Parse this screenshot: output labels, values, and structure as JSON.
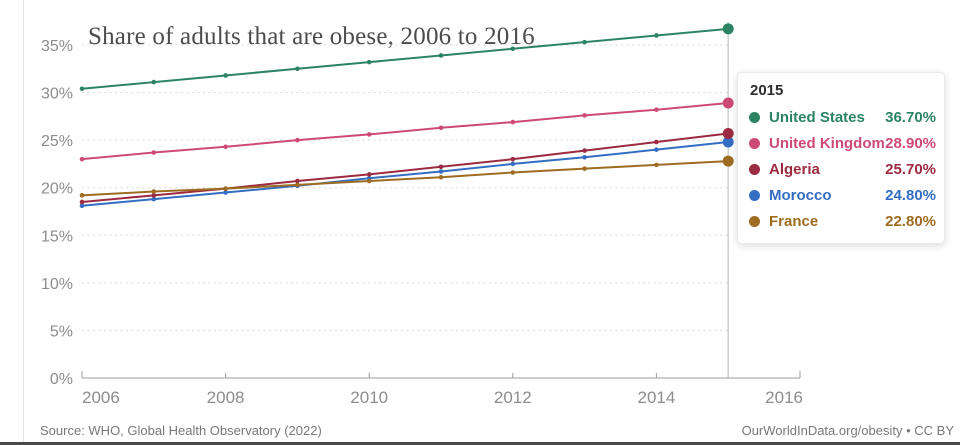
{
  "chart_data": {
    "type": "line",
    "title": "Share of adults that are obese, 2006 to 2016",
    "xlabel": "",
    "ylabel": "",
    "xlim": [
      2006,
      2016
    ],
    "ylim": [
      0,
      38
    ],
    "grid": "horizontal dotted",
    "legend_position": "hover tooltip overlay, right side",
    "hover_year": 2015,
    "x": [
      2006,
      2007,
      2008,
      2009,
      2010,
      2011,
      2012,
      2013,
      2014,
      2015
    ],
    "x_axis_ticks": [
      "2006",
      "2008",
      "2010",
      "2012",
      "2014",
      "2016"
    ],
    "y_axis_ticks": [
      "0%",
      "5%",
      "10%",
      "15%",
      "20%",
      "25%",
      "30%",
      "35%"
    ],
    "series": [
      {
        "name": "United States",
        "color": "#2C8465",
        "values": [
          30.4,
          31.1,
          31.8,
          32.5,
          33.2,
          33.9,
          34.6,
          35.3,
          36.0,
          36.7
        ]
      },
      {
        "name": "United Kingdom",
        "color": "#CE4A76",
        "values": [
          23.0,
          23.7,
          24.3,
          25.0,
          25.6,
          26.3,
          26.9,
          27.6,
          28.2,
          28.9
        ]
      },
      {
        "name": "Morocco",
        "color": "#346EC2",
        "values": [
          18.1,
          18.8,
          19.5,
          20.2,
          21.0,
          21.7,
          22.5,
          23.2,
          24.0,
          24.8
        ]
      },
      {
        "name": "Algeria",
        "color": "#9C2A40",
        "values": [
          18.5,
          19.2,
          19.9,
          20.7,
          21.4,
          22.2,
          23.0,
          23.9,
          24.8,
          25.7
        ]
      },
      {
        "name": "France",
        "color": "#9D6C21",
        "values": [
          19.2,
          19.6,
          19.9,
          20.3,
          20.7,
          21.1,
          21.6,
          22.0,
          22.4,
          22.8
        ]
      }
    ]
  },
  "tooltip": {
    "year": "2015",
    "rows": [
      {
        "label": "United States",
        "value": "36.70%",
        "color": "#2C8465"
      },
      {
        "label": "United Kingdom",
        "value": "28.90%",
        "color": "#CE4A76"
      },
      {
        "label": "Algeria",
        "value": "25.70%",
        "color": "#9C2A40"
      },
      {
        "label": "Morocco",
        "value": "24.80%",
        "color": "#346EC2"
      },
      {
        "label": "France",
        "value": "22.80%",
        "color": "#9D6C21"
      }
    ]
  },
  "footer": {
    "source": "Source: WHO, Global Health Observatory (2022)",
    "credit": "OurWorldInData.org/obesity • CC BY"
  }
}
